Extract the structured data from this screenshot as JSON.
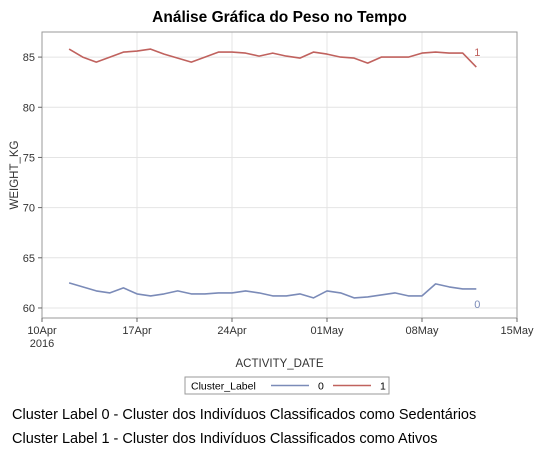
{
  "chart_data": {
    "type": "line",
    "title": "Análise Gráfica do Peso no Tempo",
    "xlabel": "ACTIVITY_DATE",
    "ylabel": "WEIGHT_KG",
    "x_ticks": [
      {
        "date": "2016-04-10",
        "label": "10Apr",
        "sublabel": "2016"
      },
      {
        "date": "2016-04-17",
        "label": "17Apr"
      },
      {
        "date": "2016-04-24",
        "label": "24Apr"
      },
      {
        "date": "2016-05-01",
        "label": "01May"
      },
      {
        "date": "2016-05-08",
        "label": "08May"
      },
      {
        "date": "2016-05-15",
        "label": "15May"
      }
    ],
    "xlim": [
      "2016-04-10",
      "2016-05-15"
    ],
    "y_ticks": [
      60,
      65,
      70,
      75,
      80,
      85
    ],
    "ylim": [
      59,
      87.5
    ],
    "grid": true,
    "legend": {
      "title": "Cluster_Label",
      "placement": "bottom"
    },
    "series": [
      {
        "name": "0",
        "color": "#7b8bb8",
        "end_label": "0",
        "points": [
          [
            "2016-04-12",
            62.5
          ],
          [
            "2016-04-13",
            62.1
          ],
          [
            "2016-04-14",
            61.7
          ],
          [
            "2016-04-15",
            61.5
          ],
          [
            "2016-04-16",
            62.0
          ],
          [
            "2016-04-17",
            61.4
          ],
          [
            "2016-04-18",
            61.2
          ],
          [
            "2016-04-19",
            61.4
          ],
          [
            "2016-04-20",
            61.7
          ],
          [
            "2016-04-21",
            61.4
          ],
          [
            "2016-04-22",
            61.4
          ],
          [
            "2016-04-23",
            61.5
          ],
          [
            "2016-04-24",
            61.5
          ],
          [
            "2016-04-25",
            61.7
          ],
          [
            "2016-04-26",
            61.5
          ],
          [
            "2016-04-27",
            61.2
          ],
          [
            "2016-04-28",
            61.2
          ],
          [
            "2016-04-29",
            61.4
          ],
          [
            "2016-04-30",
            61.0
          ],
          [
            "2016-05-01",
            61.7
          ],
          [
            "2016-05-02",
            61.5
          ],
          [
            "2016-05-03",
            61.0
          ],
          [
            "2016-05-04",
            61.1
          ],
          [
            "2016-05-05",
            61.3
          ],
          [
            "2016-05-06",
            61.5
          ],
          [
            "2016-05-07",
            61.2
          ],
          [
            "2016-05-08",
            61.2
          ],
          [
            "2016-05-09",
            62.4
          ],
          [
            "2016-05-10",
            62.1
          ],
          [
            "2016-05-11",
            61.9
          ],
          [
            "2016-05-12",
            61.9
          ]
        ]
      },
      {
        "name": "1",
        "color": "#c0625e",
        "end_label": "1",
        "points": [
          [
            "2016-04-12",
            85.8
          ],
          [
            "2016-04-13",
            85.0
          ],
          [
            "2016-04-14",
            84.5
          ],
          [
            "2016-04-15",
            85.0
          ],
          [
            "2016-04-16",
            85.5
          ],
          [
            "2016-04-17",
            85.6
          ],
          [
            "2016-04-18",
            85.8
          ],
          [
            "2016-04-19",
            85.3
          ],
          [
            "2016-04-20",
            84.9
          ],
          [
            "2016-04-21",
            84.5
          ],
          [
            "2016-04-22",
            85.0
          ],
          [
            "2016-04-23",
            85.5
          ],
          [
            "2016-04-24",
            85.5
          ],
          [
            "2016-04-25",
            85.4
          ],
          [
            "2016-04-26",
            85.1
          ],
          [
            "2016-04-27",
            85.4
          ],
          [
            "2016-04-28",
            85.1
          ],
          [
            "2016-04-29",
            84.9
          ],
          [
            "2016-04-30",
            85.5
          ],
          [
            "2016-05-01",
            85.3
          ],
          [
            "2016-05-02",
            85.0
          ],
          [
            "2016-05-03",
            84.9
          ],
          [
            "2016-05-04",
            84.4
          ],
          [
            "2016-05-05",
            85.0
          ],
          [
            "2016-05-06",
            85.0
          ],
          [
            "2016-05-07",
            85.0
          ],
          [
            "2016-05-08",
            85.4
          ],
          [
            "2016-05-09",
            85.5
          ],
          [
            "2016-05-10",
            85.4
          ],
          [
            "2016-05-11",
            85.4
          ],
          [
            "2016-05-12",
            84.0
          ]
        ]
      }
    ]
  },
  "captions": {
    "cluster0": "Cluster Label 0 - Cluster dos Indivíduos Classificados como Sedentários",
    "cluster1": "Cluster Label 1 - Cluster dos Indivíduos Classificados como Ativos"
  }
}
